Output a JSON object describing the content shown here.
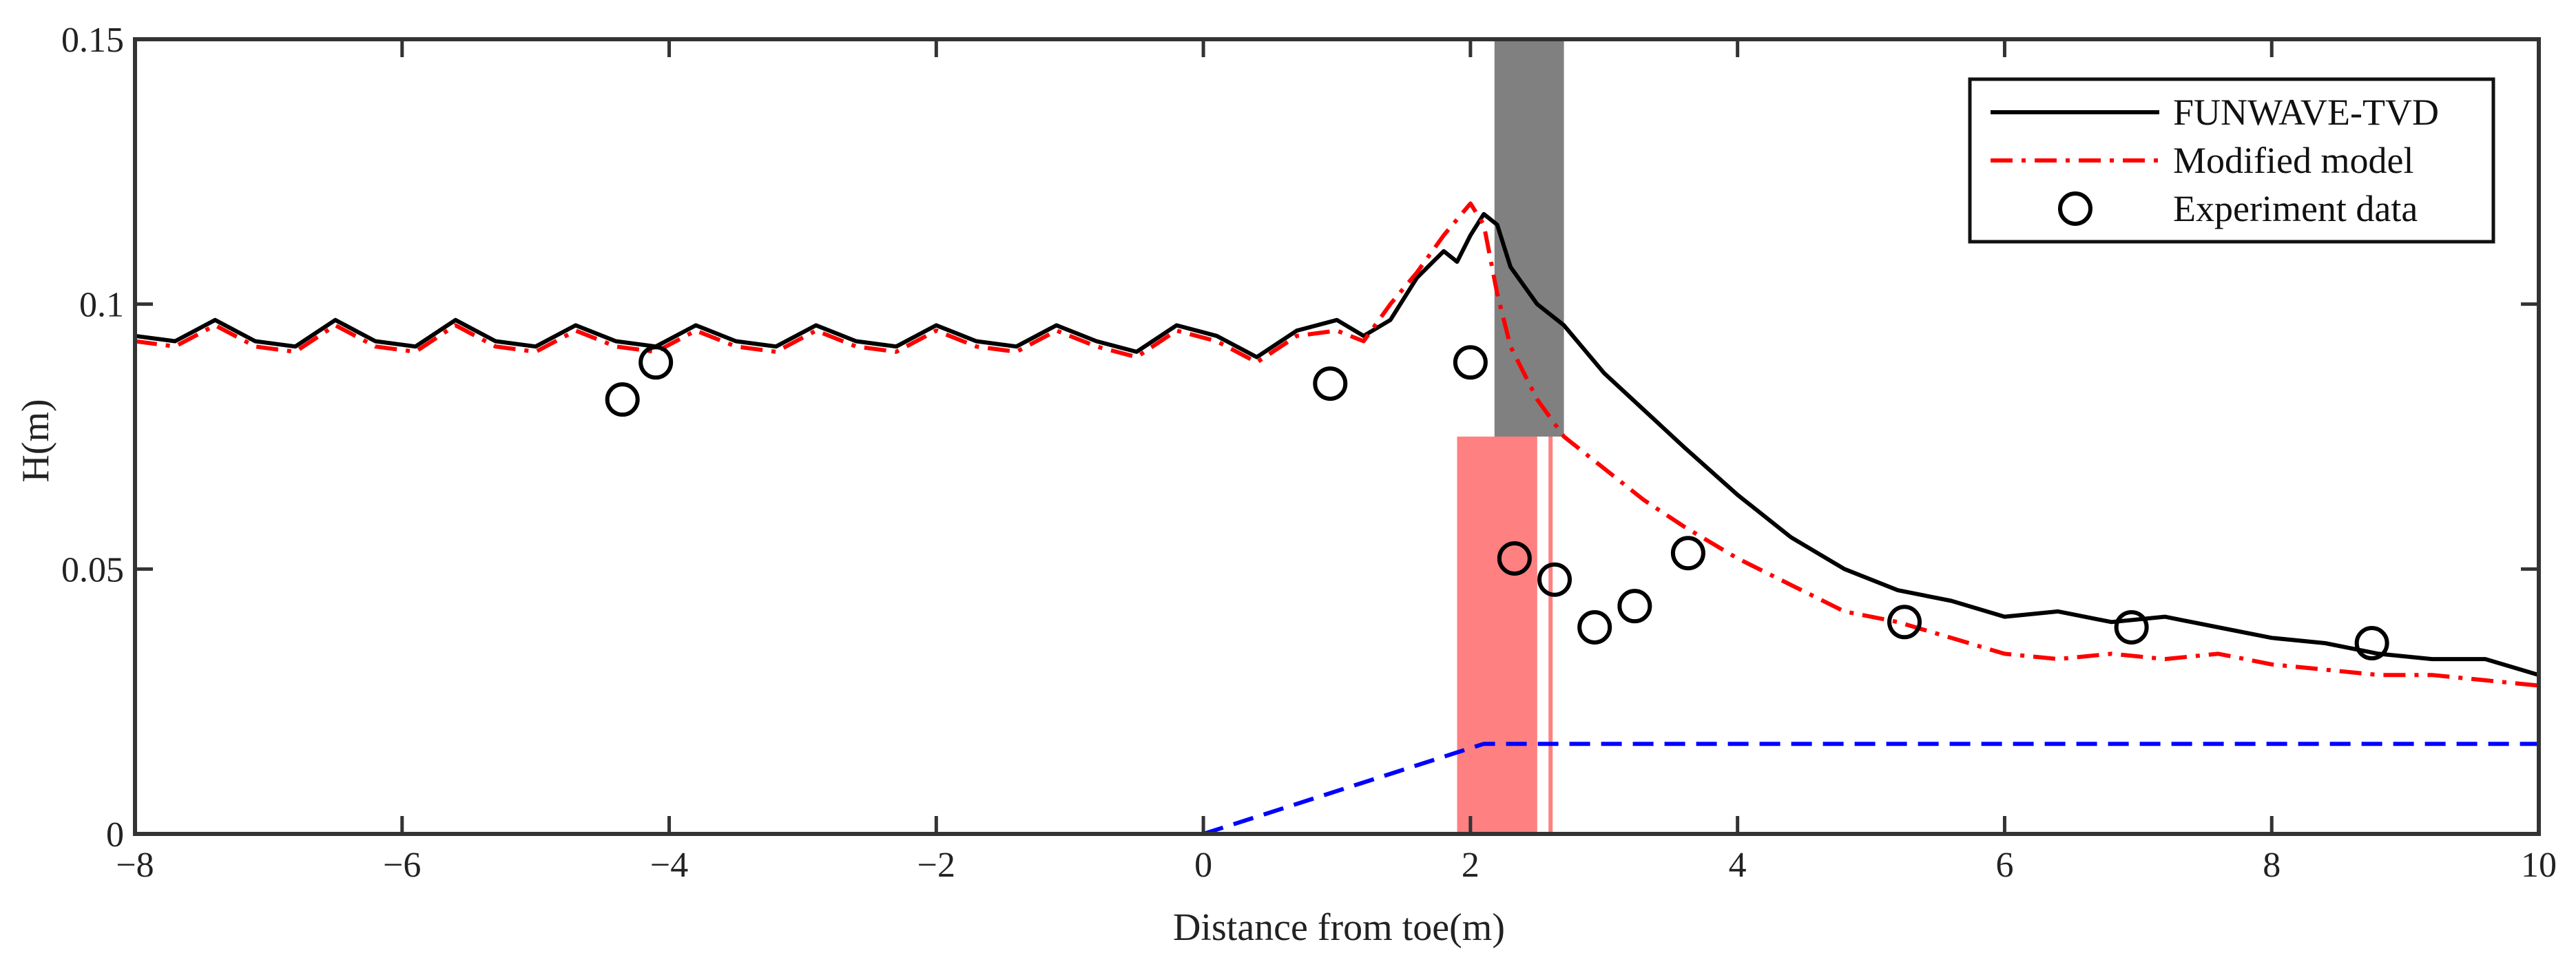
{
  "chart_data": {
    "type": "line",
    "title": "",
    "xlabel": "Distance from toe(m)",
    "ylabel": "H(m)",
    "xlim": [
      -8,
      10
    ],
    "ylim": [
      0,
      0.15
    ],
    "xticks": [
      -8,
      -6,
      -4,
      -2,
      0,
      2,
      4,
      6,
      8,
      10
    ],
    "xtick_labels": [
      "−8",
      "−6",
      "−4",
      "−2",
      "0",
      "2",
      "4",
      "6",
      "8",
      "10"
    ],
    "yticks": [
      0,
      0.05,
      0.1,
      0.15
    ],
    "ytick_labels": [
      "0",
      "0.05",
      "0.1",
      "0.15"
    ],
    "legend_position": "top-right",
    "series": [
      {
        "name": "FUNWAVE-TVD",
        "style": "solid",
        "color": "#000000",
        "x": [
          -8.0,
          -7.7,
          -7.4,
          -7.1,
          -6.8,
          -6.5,
          -6.2,
          -5.9,
          -5.6,
          -5.3,
          -5.0,
          -4.7,
          -4.4,
          -4.1,
          -3.8,
          -3.5,
          -3.2,
          -2.9,
          -2.6,
          -2.3,
          -2.0,
          -1.7,
          -1.4,
          -1.1,
          -0.8,
          -0.5,
          -0.2,
          0.1,
          0.4,
          0.7,
          1.0,
          1.2,
          1.4,
          1.6,
          1.8,
          1.9,
          2.0,
          2.1,
          2.2,
          2.3,
          2.5,
          2.7,
          3.0,
          3.3,
          3.6,
          4.0,
          4.4,
          4.8,
          5.2,
          5.6,
          6.0,
          6.4,
          6.8,
          7.2,
          7.6,
          8.0,
          8.4,
          8.8,
          9.2,
          9.6,
          10.0
        ],
        "y": [
          0.094,
          0.093,
          0.097,
          0.093,
          0.092,
          0.097,
          0.093,
          0.092,
          0.097,
          0.093,
          0.092,
          0.096,
          0.093,
          0.092,
          0.096,
          0.093,
          0.092,
          0.096,
          0.093,
          0.092,
          0.096,
          0.093,
          0.092,
          0.096,
          0.093,
          0.091,
          0.096,
          0.094,
          0.09,
          0.095,
          0.097,
          0.094,
          0.097,
          0.105,
          0.11,
          0.108,
          0.113,
          0.117,
          0.115,
          0.107,
          0.1,
          0.096,
          0.087,
          0.08,
          0.073,
          0.064,
          0.056,
          0.05,
          0.046,
          0.044,
          0.041,
          0.042,
          0.04,
          0.041,
          0.039,
          0.037,
          0.036,
          0.034,
          0.033,
          0.033,
          0.03
        ]
      },
      {
        "name": "Modified model",
        "style": "dash-dot",
        "color": "#ff0000",
        "x": [
          -8.0,
          -7.7,
          -7.4,
          -7.1,
          -6.8,
          -6.5,
          -6.2,
          -5.9,
          -5.6,
          -5.3,
          -5.0,
          -4.7,
          -4.4,
          -4.1,
          -3.8,
          -3.5,
          -3.2,
          -2.9,
          -2.6,
          -2.3,
          -2.0,
          -1.7,
          -1.4,
          -1.1,
          -0.8,
          -0.5,
          -0.2,
          0.1,
          0.4,
          0.7,
          1.0,
          1.2,
          1.4,
          1.6,
          1.8,
          1.9,
          2.0,
          2.1,
          2.2,
          2.3,
          2.5,
          2.7,
          3.0,
          3.3,
          3.6,
          4.0,
          4.4,
          4.8,
          5.2,
          5.6,
          6.0,
          6.4,
          6.8,
          7.2,
          7.6,
          8.0,
          8.4,
          8.8,
          9.2,
          9.6,
          10.0
        ],
        "y": [
          0.093,
          0.092,
          0.096,
          0.092,
          0.091,
          0.096,
          0.092,
          0.091,
          0.096,
          0.092,
          0.091,
          0.095,
          0.092,
          0.091,
          0.095,
          0.092,
          0.091,
          0.095,
          0.092,
          0.091,
          0.095,
          0.092,
          0.091,
          0.095,
          0.092,
          0.09,
          0.095,
          0.093,
          0.089,
          0.094,
          0.095,
          0.093,
          0.1,
          0.106,
          0.113,
          0.116,
          0.119,
          0.115,
          0.102,
          0.092,
          0.082,
          0.075,
          0.069,
          0.063,
          0.058,
          0.052,
          0.047,
          0.042,
          0.04,
          0.037,
          0.034,
          0.033,
          0.034,
          0.033,
          0.034,
          0.032,
          0.031,
          0.03,
          0.03,
          0.029,
          0.028
        ]
      },
      {
        "name": "Bathymetry",
        "style": "dashed",
        "color": "#0000ff",
        "x": [
          0.0,
          2.1,
          10.0
        ],
        "y": [
          0.0,
          0.017,
          0.017
        ]
      }
    ],
    "experiment": {
      "name": "Experiment data",
      "style": "open-circle",
      "color": "#000000",
      "x": [
        -4.35,
        -4.1,
        0.95,
        2.0,
        2.33,
        2.63,
        2.93,
        3.23,
        3.63,
        5.25,
        6.95,
        8.75
      ],
      "y": [
        0.082,
        0.089,
        0.085,
        0.089,
        0.052,
        0.048,
        0.039,
        0.043,
        0.053,
        0.04,
        0.039,
        0.036
      ]
    },
    "regions": [
      {
        "name": "breaking-zone-funwave",
        "x0": 2.18,
        "x1": 2.7,
        "y0": 0.075,
        "y1": 0.15,
        "color": "#808080"
      },
      {
        "name": "breaking-zone-modified",
        "x0": 1.9,
        "x1": 2.5,
        "y0": 0.0,
        "y1": 0.075,
        "color": "#ff8080"
      }
    ],
    "vertical_lines": [
      {
        "name": "breaking-point-line",
        "x": 2.6,
        "y0": 0.0,
        "y1": 0.075,
        "color": "#ff8080"
      }
    ],
    "legend": [
      {
        "label": "FUNWAVE-TVD",
        "style": "solid"
      },
      {
        "label": "Modified model",
        "style": "dash-dot"
      },
      {
        "label": "Experiment data",
        "style": "open-circle"
      }
    ]
  }
}
